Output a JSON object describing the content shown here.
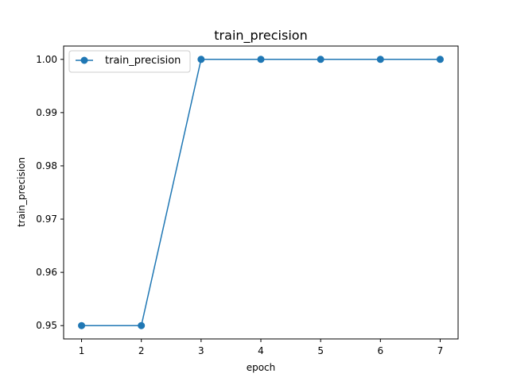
{
  "chart_data": {
    "type": "line",
    "title": "train_precision",
    "xlabel": "epoch",
    "ylabel": "train_precision",
    "x": [
      1,
      2,
      3,
      4,
      5,
      6,
      7
    ],
    "series": [
      {
        "name": "train_precision",
        "values": [
          0.95,
          0.95,
          1.0,
          1.0,
          1.0,
          1.0,
          1.0
        ],
        "color": "#1f77b4",
        "marker": "circle"
      }
    ],
    "xlim": [
      0.7,
      7.3
    ],
    "ylim": [
      0.9475,
      1.0025
    ],
    "xticks": [
      1,
      2,
      3,
      4,
      5,
      6,
      7
    ],
    "xtick_labels": [
      "1",
      "2",
      "3",
      "4",
      "5",
      "6",
      "7"
    ],
    "yticks": [
      0.95,
      0.96,
      0.97,
      0.98,
      0.99,
      1.0
    ],
    "ytick_labels": [
      "0.95",
      "0.96",
      "0.97",
      "0.98",
      "0.99",
      "1.00"
    ],
    "grid": false,
    "legend_position": "top-left"
  }
}
